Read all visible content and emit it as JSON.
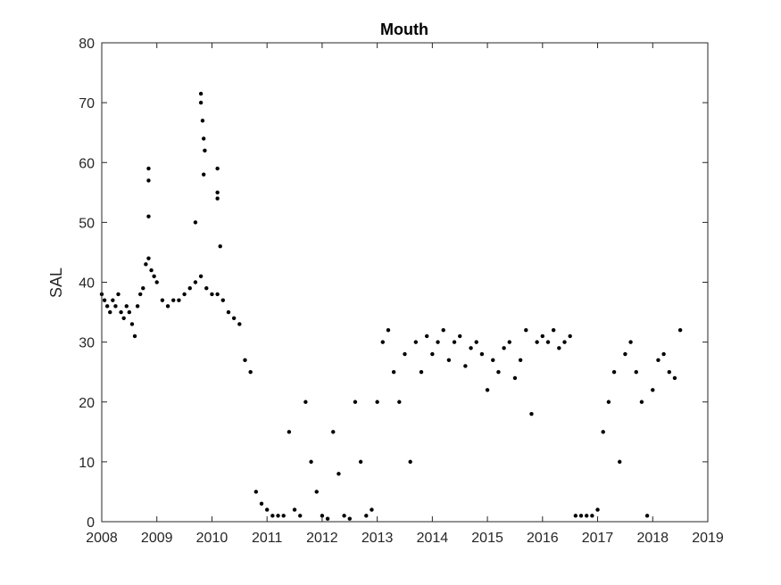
{
  "chart_data": {
    "type": "scatter",
    "title": "Mouth",
    "xlabel": "",
    "ylabel": "SAL",
    "xlim": [
      2008,
      2019
    ],
    "ylim": [
      0,
      80
    ],
    "xticks": [
      2008,
      2009,
      2010,
      2011,
      2012,
      2013,
      2014,
      2015,
      2016,
      2017,
      2018,
      2019
    ],
    "yticks": [
      0,
      10,
      20,
      30,
      40,
      50,
      60,
      70,
      80
    ],
    "grid": false,
    "legend": "none",
    "marker_color": "#000000",
    "series": [
      {
        "x": [
          2008.0,
          2008.05,
          2008.1,
          2008.15,
          2008.2,
          2008.25,
          2008.3,
          2008.35,
          2008.4,
          2008.45,
          2008.5,
          2008.55,
          2008.6,
          2008.65,
          2008.7,
          2008.75,
          2008.8,
          2008.85,
          2008.9,
          2008.95,
          2009.0,
          2009.1,
          2009.2,
          2009.3,
          2009.4,
          2009.5,
          2009.6,
          2009.7,
          2009.8,
          2009.9,
          2010.0,
          2010.1,
          2010.2,
          2010.3,
          2010.4,
          2010.5,
          2010.6,
          2010.7,
          2010.8,
          2010.9,
          2011.0,
          2011.1,
          2011.2,
          2011.3,
          2011.4,
          2011.5,
          2011.6,
          2011.7,
          2011.8,
          2011.9,
          2012.0,
          2012.1,
          2012.2,
          2012.3,
          2012.4,
          2012.5,
          2012.6,
          2012.7,
          2012.8,
          2012.9,
          2013.0,
          2013.1,
          2013.2,
          2013.3,
          2013.4,
          2013.5,
          2013.6,
          2013.7,
          2013.8,
          2013.9,
          2014.0,
          2014.1,
          2014.2,
          2014.3,
          2014.4,
          2014.5,
          2014.6,
          2014.7,
          2014.8,
          2014.9,
          2015.0,
          2015.1,
          2015.2,
          2015.3,
          2015.4,
          2015.5,
          2015.6,
          2015.7,
          2015.8,
          2015.9,
          2016.0,
          2016.1,
          2016.2,
          2016.3,
          2016.4,
          2016.5,
          2016.6,
          2016.7,
          2016.8,
          2016.9,
          2017.0,
          2017.1,
          2017.2,
          2017.3,
          2017.4,
          2017.5,
          2017.6,
          2017.7,
          2017.8,
          2017.9,
          2018.0,
          2018.1,
          2018.2,
          2018.3,
          2018.4,
          2018.5
        ],
        "y": [
          38,
          37,
          36,
          35,
          37,
          36,
          38,
          35,
          34,
          36,
          35,
          33,
          31,
          36,
          38,
          39,
          43,
          44,
          42,
          41,
          40,
          37,
          36,
          37,
          37,
          38,
          39,
          40,
          41,
          39,
          38,
          38,
          37,
          35,
          34,
          33,
          27,
          25,
          5,
          3,
          2,
          1,
          1,
          1,
          15,
          2,
          1,
          20,
          10,
          5,
          1,
          0.5,
          15,
          8,
          1,
          0.5,
          20,
          10,
          1,
          2,
          20,
          30,
          32,
          25,
          20,
          28,
          10,
          30,
          25,
          31,
          28,
          30,
          32,
          27,
          30,
          31,
          26,
          29,
          30,
          28,
          22,
          27,
          25,
          29,
          30,
          24,
          27,
          32,
          18,
          30,
          31,
          30,
          32,
          29,
          30,
          31,
          1,
          1,
          1,
          1,
          2,
          15,
          20,
          25,
          10,
          28,
          30,
          25,
          20,
          1,
          22,
          27,
          28,
          25,
          24,
          32
        ]
      },
      {
        "x": [
          2008.85,
          2008.85,
          2008.85,
          2009.7,
          2009.8,
          2009.8,
          2009.83,
          2009.85,
          2009.85,
          2009.87,
          2010.1,
          2010.1,
          2010.1,
          2010.15
        ],
        "y": [
          59,
          57,
          51,
          50,
          71.5,
          70,
          67,
          64,
          58,
          62,
          59,
          55,
          54,
          46
        ]
      }
    ]
  }
}
